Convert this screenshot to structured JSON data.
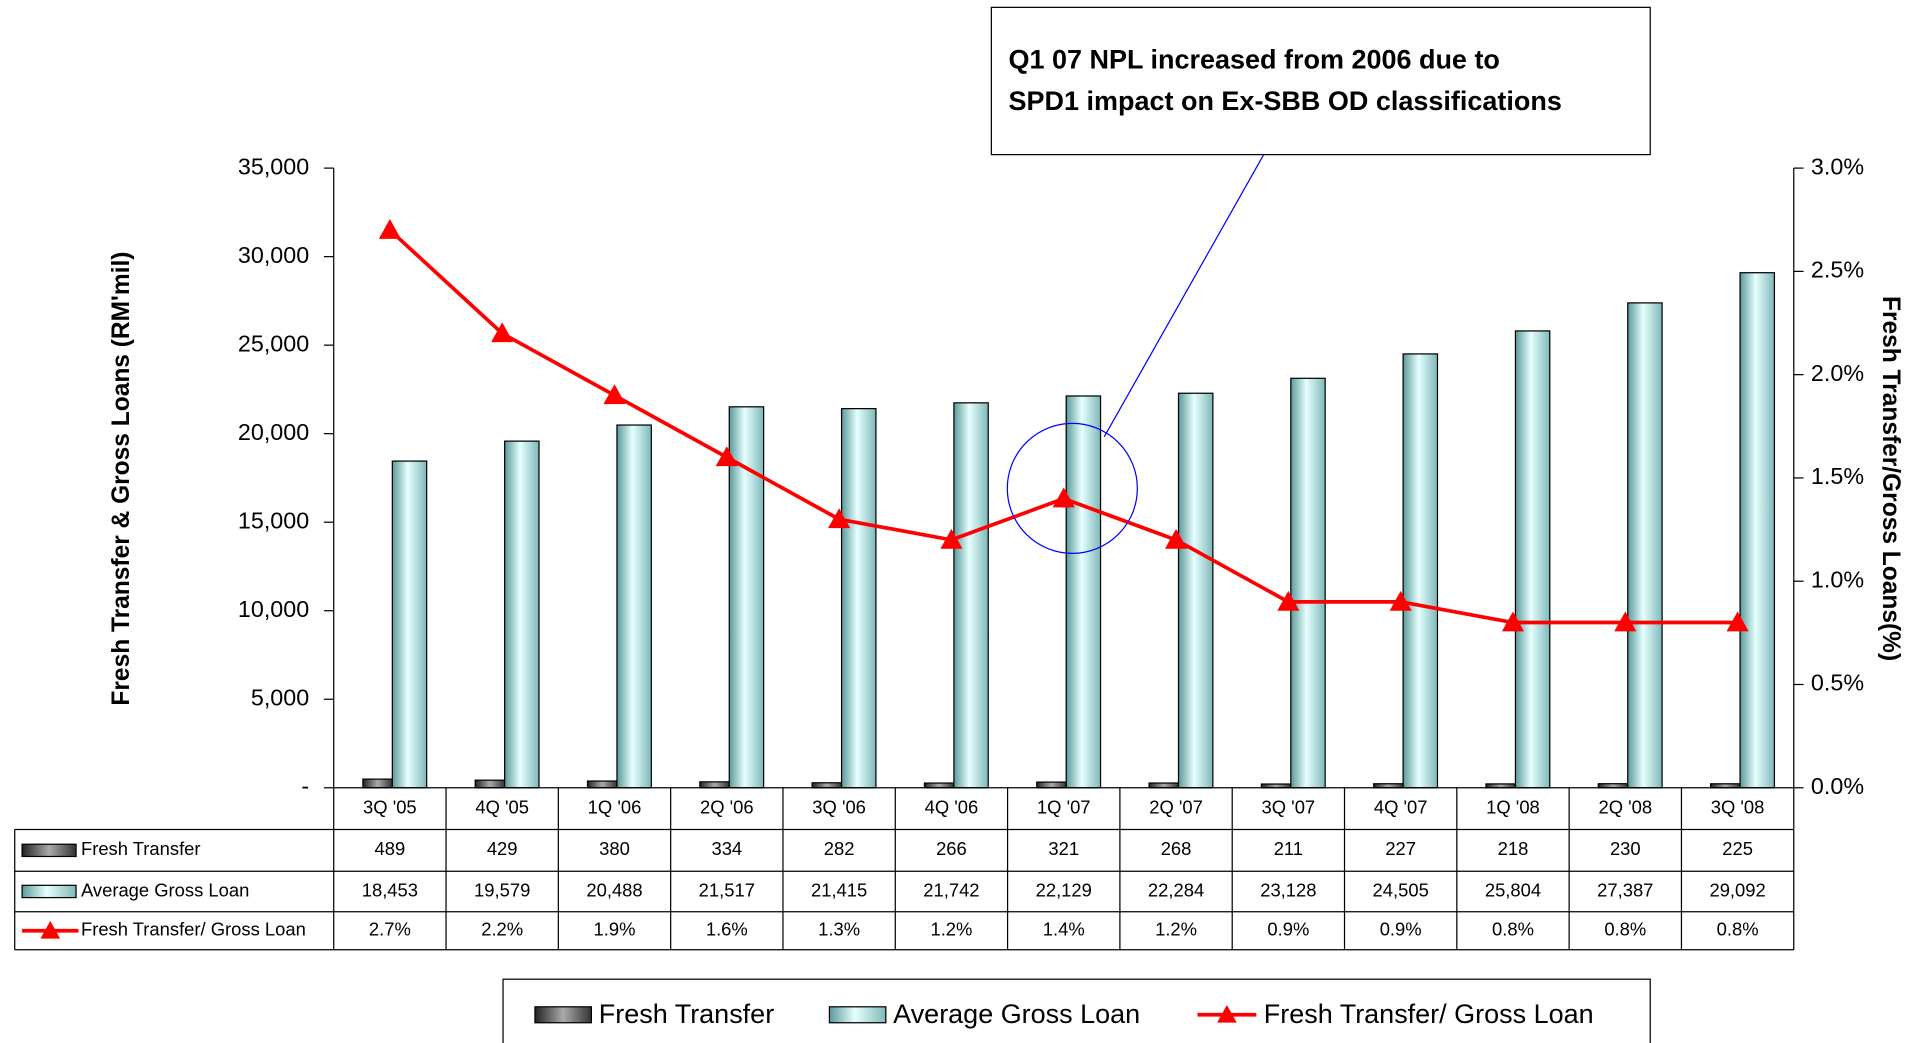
{
  "chart_data": {
    "type": "bar_line",
    "annotation": [
      "Q1 07 NPL increased from 2006 due to",
      "SPD1 impact on Ex-SBB OD classifications"
    ],
    "ylabel": "Fresh Transfer & Gross Loans (RM'mil)",
    "y2label": "Fresh Transfer/Gross Loans(%)",
    "categories": [
      "3Q '05",
      "4Q '05",
      "1Q '06",
      "2Q '06",
      "3Q '06",
      "4Q '06",
      "1Q '07",
      "2Q '07",
      "3Q '07",
      "4Q '07",
      "1Q '08",
      "2Q '08",
      "3Q '08"
    ],
    "series": [
      {
        "name": "Fresh Transfer",
        "type": "bar",
        "color": "#555555",
        "values": [
          489,
          429,
          380,
          334,
          282,
          266,
          321,
          268,
          211,
          227,
          218,
          230,
          225
        ]
      },
      {
        "name": "Average Gross Loan",
        "type": "bar",
        "color": "#aee8e8",
        "values": [
          18453,
          19579,
          20488,
          21517,
          21415,
          21742,
          22129,
          22284,
          23128,
          24505,
          25804,
          27387,
          29092
        ],
        "value_labels": [
          "18,453",
          "19,579",
          "20,488",
          "21,517",
          "21,415",
          "21,742",
          "22,129",
          "22,284",
          "23,128",
          "24,505",
          "25,804",
          "27,387",
          "29,092"
        ]
      },
      {
        "name": "Fresh Transfer/ Gross Loan",
        "type": "line",
        "axis": "y2",
        "color": "#ff0000",
        "values": [
          2.7,
          2.2,
          1.9,
          1.6,
          1.3,
          1.2,
          1.4,
          1.2,
          0.9,
          0.9,
          0.8,
          0.8,
          0.8
        ],
        "value_labels": [
          "2.7%",
          "2.2%",
          "1.9%",
          "1.6%",
          "1.3%",
          "1.2%",
          "1.4%",
          "1.2%",
          "0.9%",
          "0.9%",
          "0.8%",
          "0.8%",
          "0.8%"
        ]
      }
    ],
    "ylim": [
      0,
      35000
    ],
    "yticks": [
      {
        "value": 0,
        "label": "-"
      },
      {
        "value": 5000,
        "label": "5,000"
      },
      {
        "value": 10000,
        "label": "10,000"
      },
      {
        "value": 15000,
        "label": "15,000"
      },
      {
        "value": 20000,
        "label": "20,000"
      },
      {
        "value": 25000,
        "label": "25,000"
      },
      {
        "value": 30000,
        "label": "30,000"
      },
      {
        "value": 35000,
        "label": "35,000"
      }
    ],
    "y2lim": [
      0,
      3
    ],
    "y2ticks": [
      {
        "value": 0,
        "label": "0.0%"
      },
      {
        "value": 0.5,
        "label": "0.5%"
      },
      {
        "value": 1,
        "label": "1.0%"
      },
      {
        "value": 1.5,
        "label": "1.5%"
      },
      {
        "value": 2,
        "label": "2.0%"
      },
      {
        "value": 2.5,
        "label": "2.5%"
      },
      {
        "value": 3,
        "label": "3.0%"
      }
    ],
    "legend": "bottom"
  }
}
